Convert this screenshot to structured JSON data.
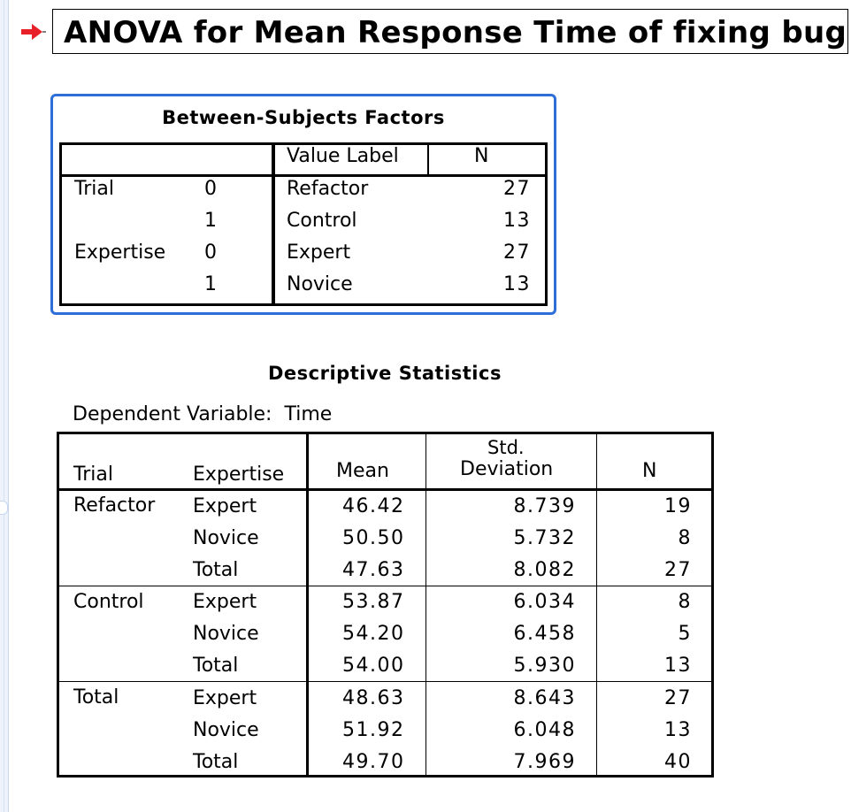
{
  "title": "ANOVA for Mean Response Time of fixing bug",
  "between_subjects": {
    "title": "Between-Subjects Factors",
    "headers": {
      "value_label": "Value Label",
      "n": "N"
    },
    "rows": [
      {
        "factor": "Trial",
        "value": "0",
        "label": "Refactor",
        "n": "27"
      },
      {
        "factor": "",
        "value": "1",
        "label": "Control",
        "n": "13"
      },
      {
        "factor": "Expertise",
        "value": "0",
        "label": "Expert",
        "n": "27"
      },
      {
        "factor": "",
        "value": "1",
        "label": "Novice",
        "n": "13"
      }
    ]
  },
  "descriptive": {
    "title": "Descriptive Statistics",
    "dependent_variable_label": "Dependent Variable:",
    "dependent_variable": "Time",
    "headers": {
      "trial": "Trial",
      "expertise": "Expertise",
      "mean": "Mean",
      "std_line1": "Std.",
      "std_line2": "Deviation",
      "n": "N"
    },
    "groups": [
      {
        "trial": "Refactor",
        "rows": [
          {
            "expertise": "Expert",
            "mean": "46.42",
            "std": "8.739",
            "n": "19"
          },
          {
            "expertise": "Novice",
            "mean": "50.50",
            "std": "5.732",
            "n": "8"
          },
          {
            "expertise": "Total",
            "mean": "47.63",
            "std": "8.082",
            "n": "27"
          }
        ]
      },
      {
        "trial": "Control",
        "rows": [
          {
            "expertise": "Expert",
            "mean": "53.87",
            "std": "6.034",
            "n": "8"
          },
          {
            "expertise": "Novice",
            "mean": "54.20",
            "std": "6.458",
            "n": "5"
          },
          {
            "expertise": "Total",
            "mean": "54.00",
            "std": "5.930",
            "n": "13"
          }
        ]
      },
      {
        "trial": "Total",
        "rows": [
          {
            "expertise": "Expert",
            "mean": "48.63",
            "std": "8.643",
            "n": "27"
          },
          {
            "expertise": "Novice",
            "mean": "51.92",
            "std": "6.048",
            "n": "13"
          },
          {
            "expertise": "Total",
            "mean": "49.70",
            "std": "7.969",
            "n": "40"
          }
        ]
      }
    ]
  },
  "colors": {
    "arrow": "#e8202a",
    "panel_border": "#2e6ed8",
    "frame": "#c7d7ee"
  },
  "icons": {
    "title_marker": "red-arrow-icon"
  }
}
